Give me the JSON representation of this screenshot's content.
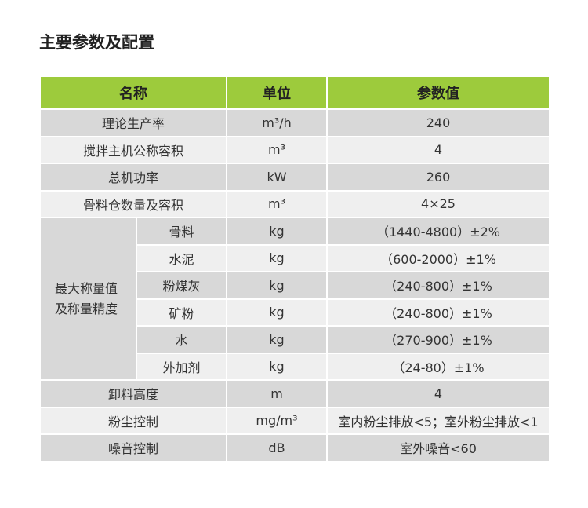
{
  "header": {
    "title": "主要参数及配置"
  },
  "table": {
    "columns": [
      "名称",
      "单位",
      "参数值"
    ],
    "rows_top": [
      [
        "理论生产率",
        "m³/h",
        "240"
      ],
      [
        "搅拌主机公称容积",
        "m³",
        "4"
      ],
      [
        "总机功率",
        "kW",
        "260"
      ],
      [
        "骨料仓数量及容积",
        "m³",
        "4×25"
      ]
    ],
    "group": {
      "label_lines": [
        "最大称量值",
        "及称量精度"
      ],
      "rows": [
        [
          "骨料",
          "kg",
          "（1440-4800）±2%"
        ],
        [
          "水泥",
          "kg",
          "（600-2000）±1%"
        ],
        [
          "粉煤灰",
          "kg",
          "（240-800）±1%"
        ],
        [
          "矿粉",
          "kg",
          "（240-800）±1%"
        ],
        [
          "水",
          "kg",
          "（270-900）±1%"
        ],
        [
          "外加剂",
          "kg",
          "（24-80）±1%"
        ]
      ]
    },
    "rows_bottom": [
      [
        "卸料高度",
        "m",
        "4"
      ],
      [
        "粉尘控制",
        "mg/m³",
        "室内粉尘排放<5；室外粉尘排放<1"
      ],
      [
        "噪音控制",
        "dB",
        "室外噪音<60"
      ]
    ]
  }
}
